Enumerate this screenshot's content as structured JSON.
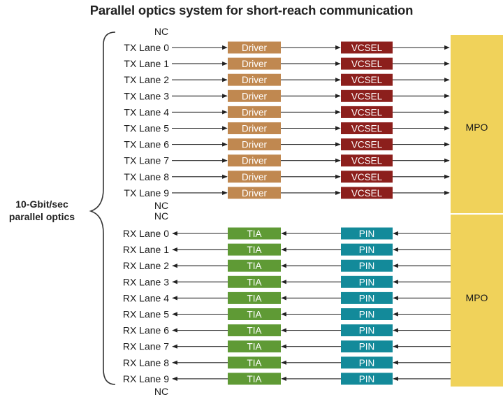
{
  "title": "Parallel optics system for short-reach communication",
  "side_label": [
    "10-Gbit/sec",
    "parallel optics"
  ],
  "nc_label": "NC",
  "tx": {
    "lanes": [
      "TX Lane 0",
      "TX Lane 1",
      "TX Lane 2",
      "TX Lane 3",
      "TX Lane 4",
      "TX Lane 5",
      "TX Lane 6",
      "TX Lane 7",
      "TX Lane 8",
      "TX Lane 9"
    ],
    "stage1_label": "Driver",
    "stage2_label": "VCSEL",
    "connector_label": "MPO"
  },
  "rx": {
    "lanes": [
      "RX Lane 0",
      "RX Lane 1",
      "RX Lane 2",
      "RX Lane 3",
      "RX Lane 4",
      "RX Lane 5",
      "RX Lane 6",
      "RX Lane 7",
      "RX Lane 8",
      "RX Lane 9"
    ],
    "stage1_label": "TIA",
    "stage2_label": "PIN",
    "connector_label": "MPO"
  },
  "colors": {
    "driver": "#c08850",
    "vcsel": "#8c1f1c",
    "tia": "#5f9a35",
    "pin": "#138a9a",
    "mpo": "#f0d25a",
    "line": "#222222",
    "box_text": "#ffffff"
  }
}
